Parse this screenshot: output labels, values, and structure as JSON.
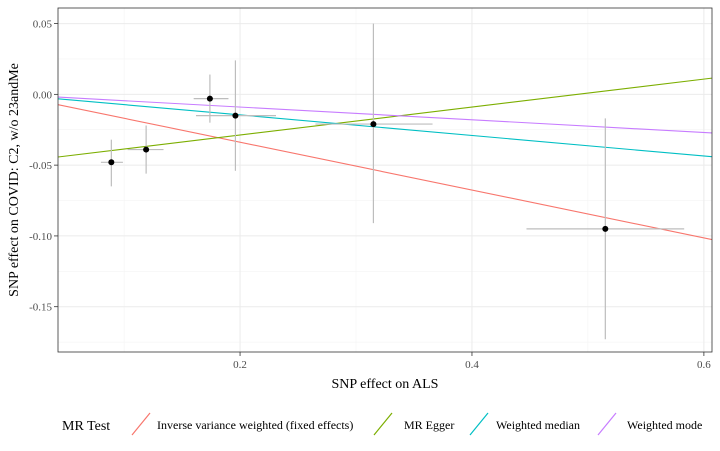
{
  "chart_data": {
    "type": "scatter",
    "xlabel": "SNP effect on ALS",
    "ylabel": "SNP effect on COVID: C2, w/o 23andMe",
    "xlim": [
      0.043,
      0.607
    ],
    "ylim": [
      -0.182,
      0.061
    ],
    "x_ticks": [
      0.2,
      0.4,
      0.6
    ],
    "x_tick_labels": [
      "0.2",
      "0.4",
      "0.6"
    ],
    "y_ticks": [
      -0.15,
      -0.1,
      -0.05,
      0.0,
      0.05
    ],
    "y_tick_labels": [
      "-0.15",
      "-0.10",
      "-0.05",
      "0.00",
      "0.05"
    ],
    "grid": true,
    "points": [
      {
        "x": 0.089,
        "y": -0.048,
        "x_lo": 0.08,
        "x_hi": 0.099,
        "y_lo": -0.065,
        "y_hi": -0.032
      },
      {
        "x": 0.119,
        "y": -0.039,
        "x_lo": 0.103,
        "x_hi": 0.134,
        "y_lo": -0.056,
        "y_hi": -0.022
      },
      {
        "x": 0.174,
        "y": -0.003,
        "x_lo": 0.16,
        "x_hi": 0.19,
        "y_lo": -0.02,
        "y_hi": 0.014
      },
      {
        "x": 0.196,
        "y": -0.015,
        "x_lo": 0.162,
        "x_hi": 0.231,
        "y_lo": -0.054,
        "y_hi": 0.024
      },
      {
        "x": 0.315,
        "y": -0.021,
        "x_lo": 0.265,
        "x_hi": 0.366,
        "y_lo": -0.091,
        "y_hi": 0.05
      },
      {
        "x": 0.515,
        "y": -0.095,
        "x_lo": 0.447,
        "x_hi": 0.583,
        "y_lo": -0.173,
        "y_hi": -0.017
      }
    ],
    "legend": {
      "title": "MR Test",
      "position": "bottom"
    },
    "series": [
      {
        "name": "Inverse variance weighted (fixed effects)",
        "color": "#F8766D",
        "intercept": 0.0,
        "slope": -0.169
      },
      {
        "name": "MR Egger",
        "color": "#7CAE00",
        "intercept": -0.0485,
        "slope": 0.0988
      },
      {
        "name": "Weighted median",
        "color": "#00BFC4",
        "intercept": 0.0,
        "slope": -0.0726
      },
      {
        "name": "Weighted mode",
        "color": "#C77CFF",
        "intercept": 0.0,
        "slope": -0.0449
      }
    ]
  }
}
